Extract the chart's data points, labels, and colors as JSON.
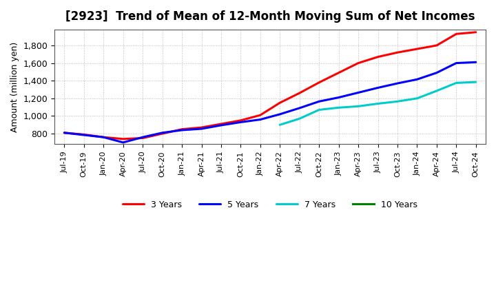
{
  "title": "[2923]  Trend of Mean of 12-Month Moving Sum of Net Incomes",
  "ylabel": "Amount (million yen)",
  "background_color": "#ffffff",
  "grid_color": "#aaaaaa",
  "ylim": [
    680,
    1980
  ],
  "yticks": [
    800,
    1000,
    1200,
    1400,
    1600,
    1800
  ],
  "series": {
    "3 Years": {
      "color": "#ff0000",
      "data": [
        [
          "Jul-19",
          810
        ],
        [
          "Oct-19",
          790
        ],
        [
          "Jan-20",
          760
        ],
        [
          "Apr-20",
          740
        ],
        [
          "Jul-20",
          750
        ],
        [
          "Oct-20",
          800
        ],
        [
          "Jan-21",
          850
        ],
        [
          "Apr-21",
          870
        ],
        [
          "Jul-21",
          910
        ],
        [
          "Oct-21",
          950
        ],
        [
          "Jan-22",
          1010
        ],
        [
          "Apr-22",
          1150
        ],
        [
          "Jul-22",
          1260
        ],
        [
          "Oct-22",
          1380
        ],
        [
          "Jan-23",
          1490
        ],
        [
          "Apr-23",
          1600
        ],
        [
          "Jul-23",
          1670
        ],
        [
          "Oct-23",
          1720
        ],
        [
          "Jan-24",
          1760
        ],
        [
          "Apr-24",
          1800
        ],
        [
          "Jul-24",
          1930
        ],
        [
          "Oct-24",
          1950
        ]
      ]
    },
    "5 Years": {
      "color": "#0000ff",
      "data": [
        [
          "Jul-19",
          810
        ],
        [
          "Oct-19",
          785
        ],
        [
          "Jan-20",
          760
        ],
        [
          "Apr-20",
          700
        ],
        [
          "Jul-20",
          760
        ],
        [
          "Oct-20",
          810
        ],
        [
          "Jan-21",
          840
        ],
        [
          "Apr-21",
          855
        ],
        [
          "Jul-21",
          895
        ],
        [
          "Oct-21",
          930
        ],
        [
          "Jan-22",
          960
        ],
        [
          "Apr-22",
          1020
        ],
        [
          "Jul-22",
          1090
        ],
        [
          "Oct-22",
          1165
        ],
        [
          "Jan-23",
          1210
        ],
        [
          "Apr-23",
          1265
        ],
        [
          "Jul-23",
          1320
        ],
        [
          "Oct-23",
          1370
        ],
        [
          "Jan-24",
          1415
        ],
        [
          "Apr-24",
          1490
        ],
        [
          "Jul-24",
          1600
        ],
        [
          "Oct-24",
          1610
        ]
      ]
    },
    "7 Years": {
      "color": "#00cccc",
      "data": [
        [
          "Apr-22",
          900
        ],
        [
          "Jul-22",
          970
        ],
        [
          "Oct-22",
          1070
        ],
        [
          "Jan-23",
          1095
        ],
        [
          "Apr-23",
          1110
        ],
        [
          "Jul-23",
          1140
        ],
        [
          "Oct-23",
          1165
        ],
        [
          "Jan-24",
          1200
        ],
        [
          "Apr-24",
          1285
        ],
        [
          "Jul-24",
          1375
        ],
        [
          "Oct-24",
          1385
        ]
      ]
    },
    "10 Years": {
      "color": "#008000",
      "data": []
    }
  },
  "legend_ncol": 4,
  "xtick_labels": [
    "Jul-19",
    "Oct-19",
    "Jan-20",
    "Apr-20",
    "Jul-20",
    "Oct-20",
    "Jan-21",
    "Apr-21",
    "Jul-21",
    "Oct-21",
    "Jan-22",
    "Apr-22",
    "Jul-22",
    "Oct-22",
    "Jan-23",
    "Apr-23",
    "Jul-23",
    "Oct-23",
    "Jan-24",
    "Apr-24",
    "Jul-24",
    "Oct-24"
  ]
}
